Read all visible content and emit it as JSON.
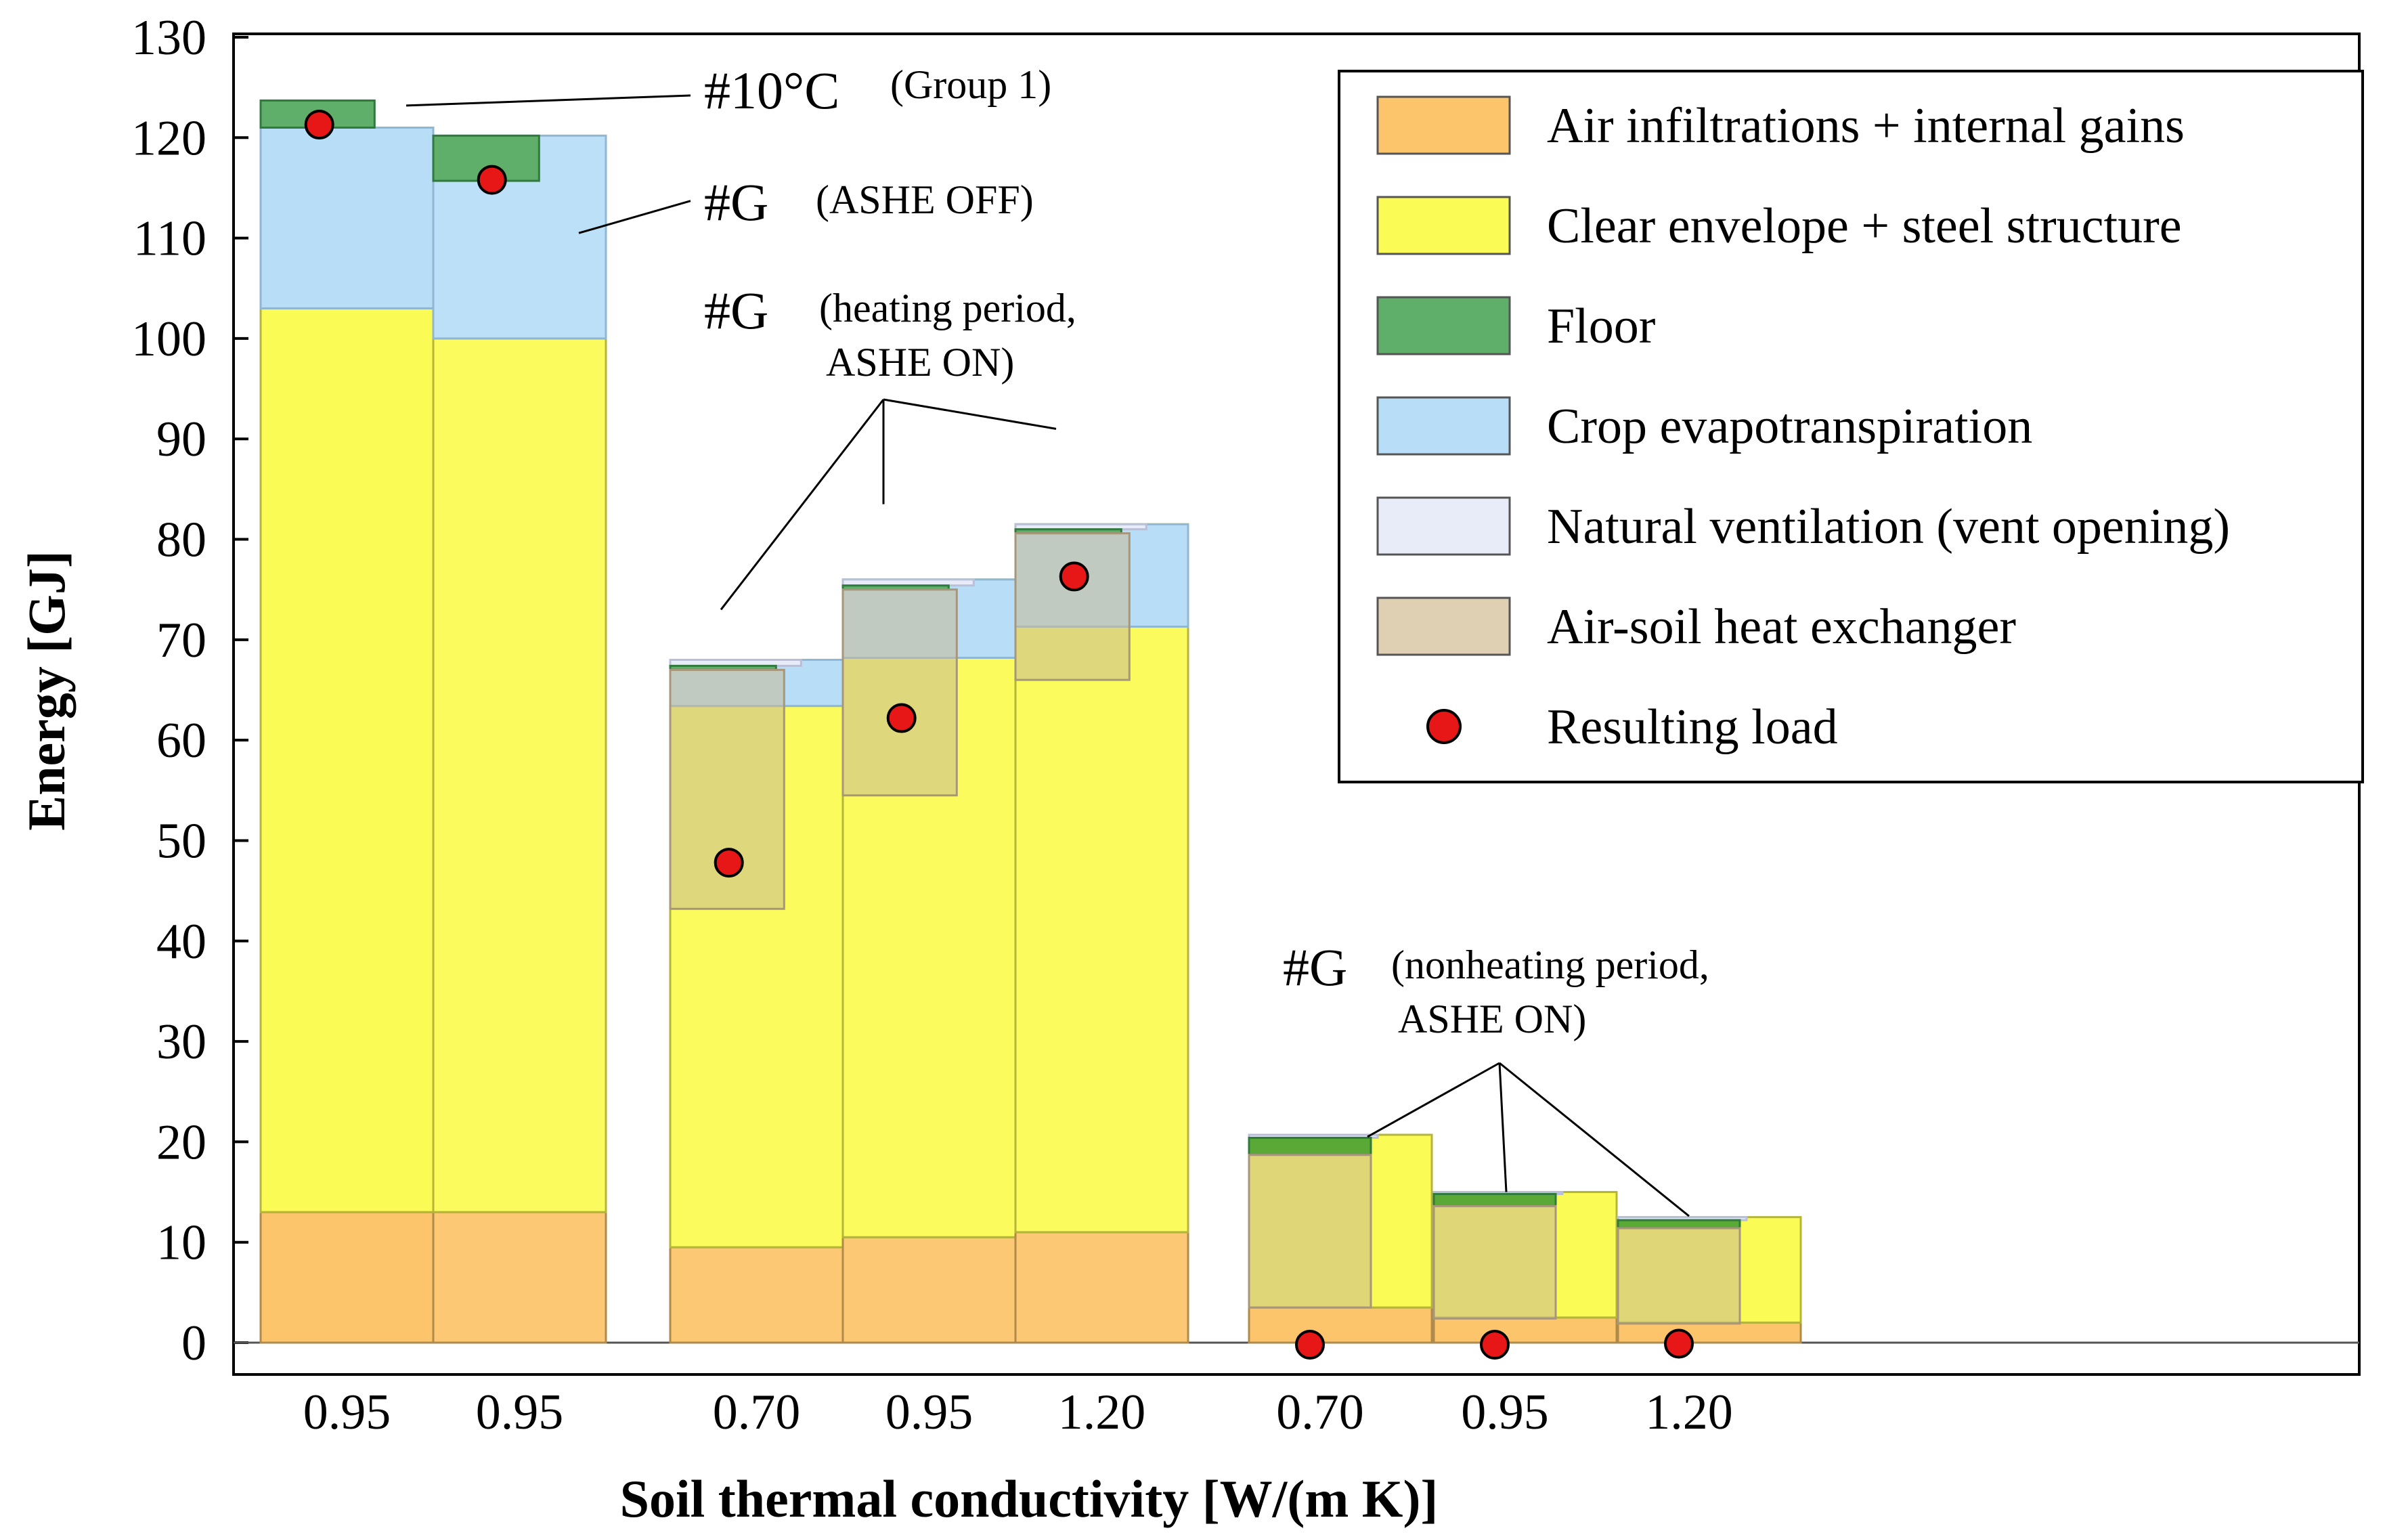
{
  "chart_data": {
    "type": "bar",
    "stacked": true,
    "ylabel": "Energy [GJ]",
    "xlabel": "Soil thermal conductivity [W/(m K)]",
    "ylim": [
      0,
      130
    ],
    "yticks": [
      0,
      10,
      20,
      30,
      40,
      50,
      60,
      70,
      80,
      90,
      100,
      110,
      120,
      130
    ],
    "legend": {
      "position": "top-right",
      "entries": [
        {
          "key": "air",
          "label": "Air infiltrations + internal gains",
          "color": "#FDC56B"
        },
        {
          "key": "clear",
          "label": "Clear envelope + steel structure",
          "color": "#FBFB55"
        },
        {
          "key": "floor",
          "label": "Floor",
          "color": "#5FAF6A"
        },
        {
          "key": "crop",
          "label": "Crop evapotranspiration",
          "color": "#B8DEF7"
        },
        {
          "key": "vent",
          "label": "Natural ventilation (vent opening)",
          "color": "#E8ECF8"
        },
        {
          "key": "ashe",
          "label": "Air-soil heat exchanger",
          "color": "#DFD0B4"
        },
        {
          "key": "load",
          "label": "Resulting load",
          "color": "#E81717"
        }
      ]
    },
    "categories": [
      {
        "label": "0.95",
        "group": "#10°C (Group 1)",
        "gains": {
          "air": 13,
          "clear": 90,
          "crop": 18,
          "floor": 2.7
        },
        "losses": {},
        "load": 121.3
      },
      {
        "label": "0.95",
        "group": "#G (ASHE OFF)",
        "gains": {
          "air": 13,
          "clear": 87,
          "crop": 20.2
        },
        "losses": {
          "floor": 4.5
        },
        "load": 115.8
      },
      {
        "label": "0.70",
        "group": "#G (heating period, ASHE ON)",
        "gains": {
          "air": 9.5,
          "clear": 58.5
        },
        "losses": {
          "crop": 4.6,
          "vent": 0.6,
          "floor": 0.4,
          "ashe": 23.8
        },
        "load": 47.8
      },
      {
        "label": "0.95",
        "group": "#G (heating period, ASHE ON)",
        "gains": {
          "air": 10.5,
          "clear": 65.5
        },
        "losses": {
          "crop": 7.8,
          "vent": 0.6,
          "floor": 0.4,
          "ashe": 20.5
        },
        "load": 62.2
      },
      {
        "label": "1.20",
        "group": "#G (heating period, ASHE ON)",
        "gains": {
          "air": 11,
          "clear": 70.5
        },
        "losses": {
          "crop": 10.2,
          "vent": 0.5,
          "floor": 0.4,
          "ashe": 14.6
        },
        "load": 76.3
      },
      {
        "label": "0.70",
        "group": "#G (nonheating period, ASHE ON)",
        "gains": {
          "air": 3.5,
          "clear": 17.2
        },
        "losses": {
          "vent": 0.3,
          "floor": 1.7,
          "ashe": 15.2
        },
        "load": -0.2
      },
      {
        "label": "0.95",
        "group": "#G (nonheating period, ASHE ON)",
        "gains": {
          "air": 2.5,
          "clear": 12.5
        },
        "losses": {
          "vent": 0.2,
          "floor": 1.2,
          "ashe": 11.2
        },
        "load": -0.2
      },
      {
        "label": "1.20",
        "group": "#G (nonheating period, ASHE ON)",
        "gains": {
          "air": 2,
          "clear": 10.5
        },
        "losses": {
          "vent": 0.3,
          "floor": 0.8,
          "ashe": 9.5
        },
        "load": -0.1
      }
    ],
    "annotations": [
      {
        "main": "#10°C",
        "sub": "(Group 1)"
      },
      {
        "main": "#G",
        "sub": "(ASHE OFF)"
      },
      {
        "main": "#G",
        "sub": "(heating period,",
        "sub2": "ASHE ON)"
      },
      {
        "main": "#G",
        "sub": "(nonheating period,",
        "sub2": "ASHE ON)"
      }
    ]
  }
}
